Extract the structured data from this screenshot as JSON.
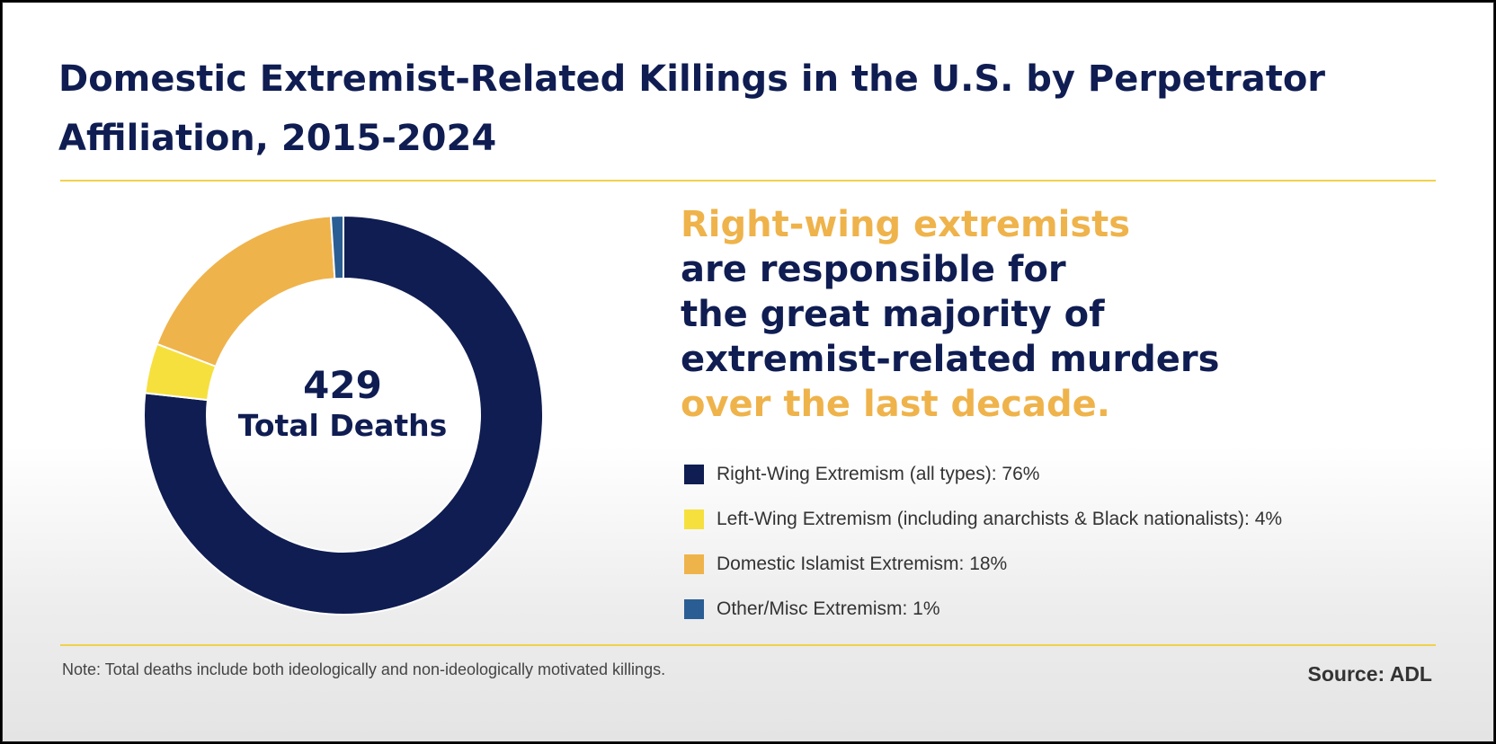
{
  "title": "Domestic Extremist-Related Killings in the U.S. by Perpetrator Affiliation, 2015-2024",
  "center": {
    "number": "429",
    "label": "Total Deaths"
  },
  "headline": [
    {
      "text": "Right-wing extremists",
      "color": "#efb34b"
    },
    {
      "text": "are responsible for",
      "color": "#0f1d52"
    },
    {
      "text": "the great majority of",
      "color": "#0f1d52"
    },
    {
      "text": "extremist-related murders",
      "color": "#0f1d52"
    },
    {
      "text": "over the last decade.",
      "color": "#efb34b"
    }
  ],
  "note": "Note: Total deaths include both ideologically and non-ideologically motivated killings.",
  "source": "Source: ADL",
  "chart_data": {
    "type": "pie",
    "donut": true,
    "total": 429,
    "categories": [
      "Right-Wing Extremism (all types): 76%",
      "Left-Wing Extremism (including anarchists & Black nationalists): 4%",
      "Domestic Islamist Extremism: 18%",
      "Other/Misc Extremism: 1%"
    ],
    "values": [
      76,
      4,
      18,
      1
    ],
    "colors": [
      "#0f1d52",
      "#f6e03e",
      "#efb34b",
      "#2a5d94"
    ]
  }
}
